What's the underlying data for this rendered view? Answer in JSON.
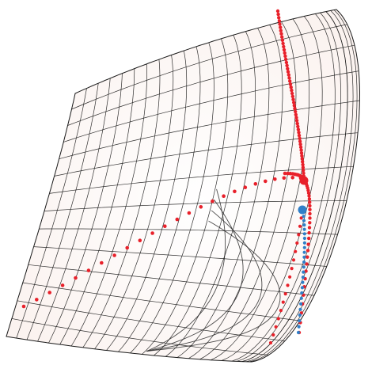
{
  "figure": {
    "description_colors": {
      "surface_fill": "#fbf5f3",
      "mesh_stroke": "#1a1a1a",
      "contour_stroke": "#2a2a2a",
      "path_red": "#e8202a",
      "path_blue": "#2f7fc8"
    },
    "paths": [
      {
        "name": "red-path-diagonal",
        "color": "red"
      },
      {
        "name": "red-path-vertical",
        "color": "red"
      },
      {
        "name": "red-path-lower-left",
        "color": "red"
      },
      {
        "name": "blue-path",
        "color": "blue"
      }
    ],
    "markers": [
      {
        "name": "red-end-marker",
        "color": "red"
      },
      {
        "name": "blue-end-marker",
        "color": "blue"
      }
    ]
  }
}
